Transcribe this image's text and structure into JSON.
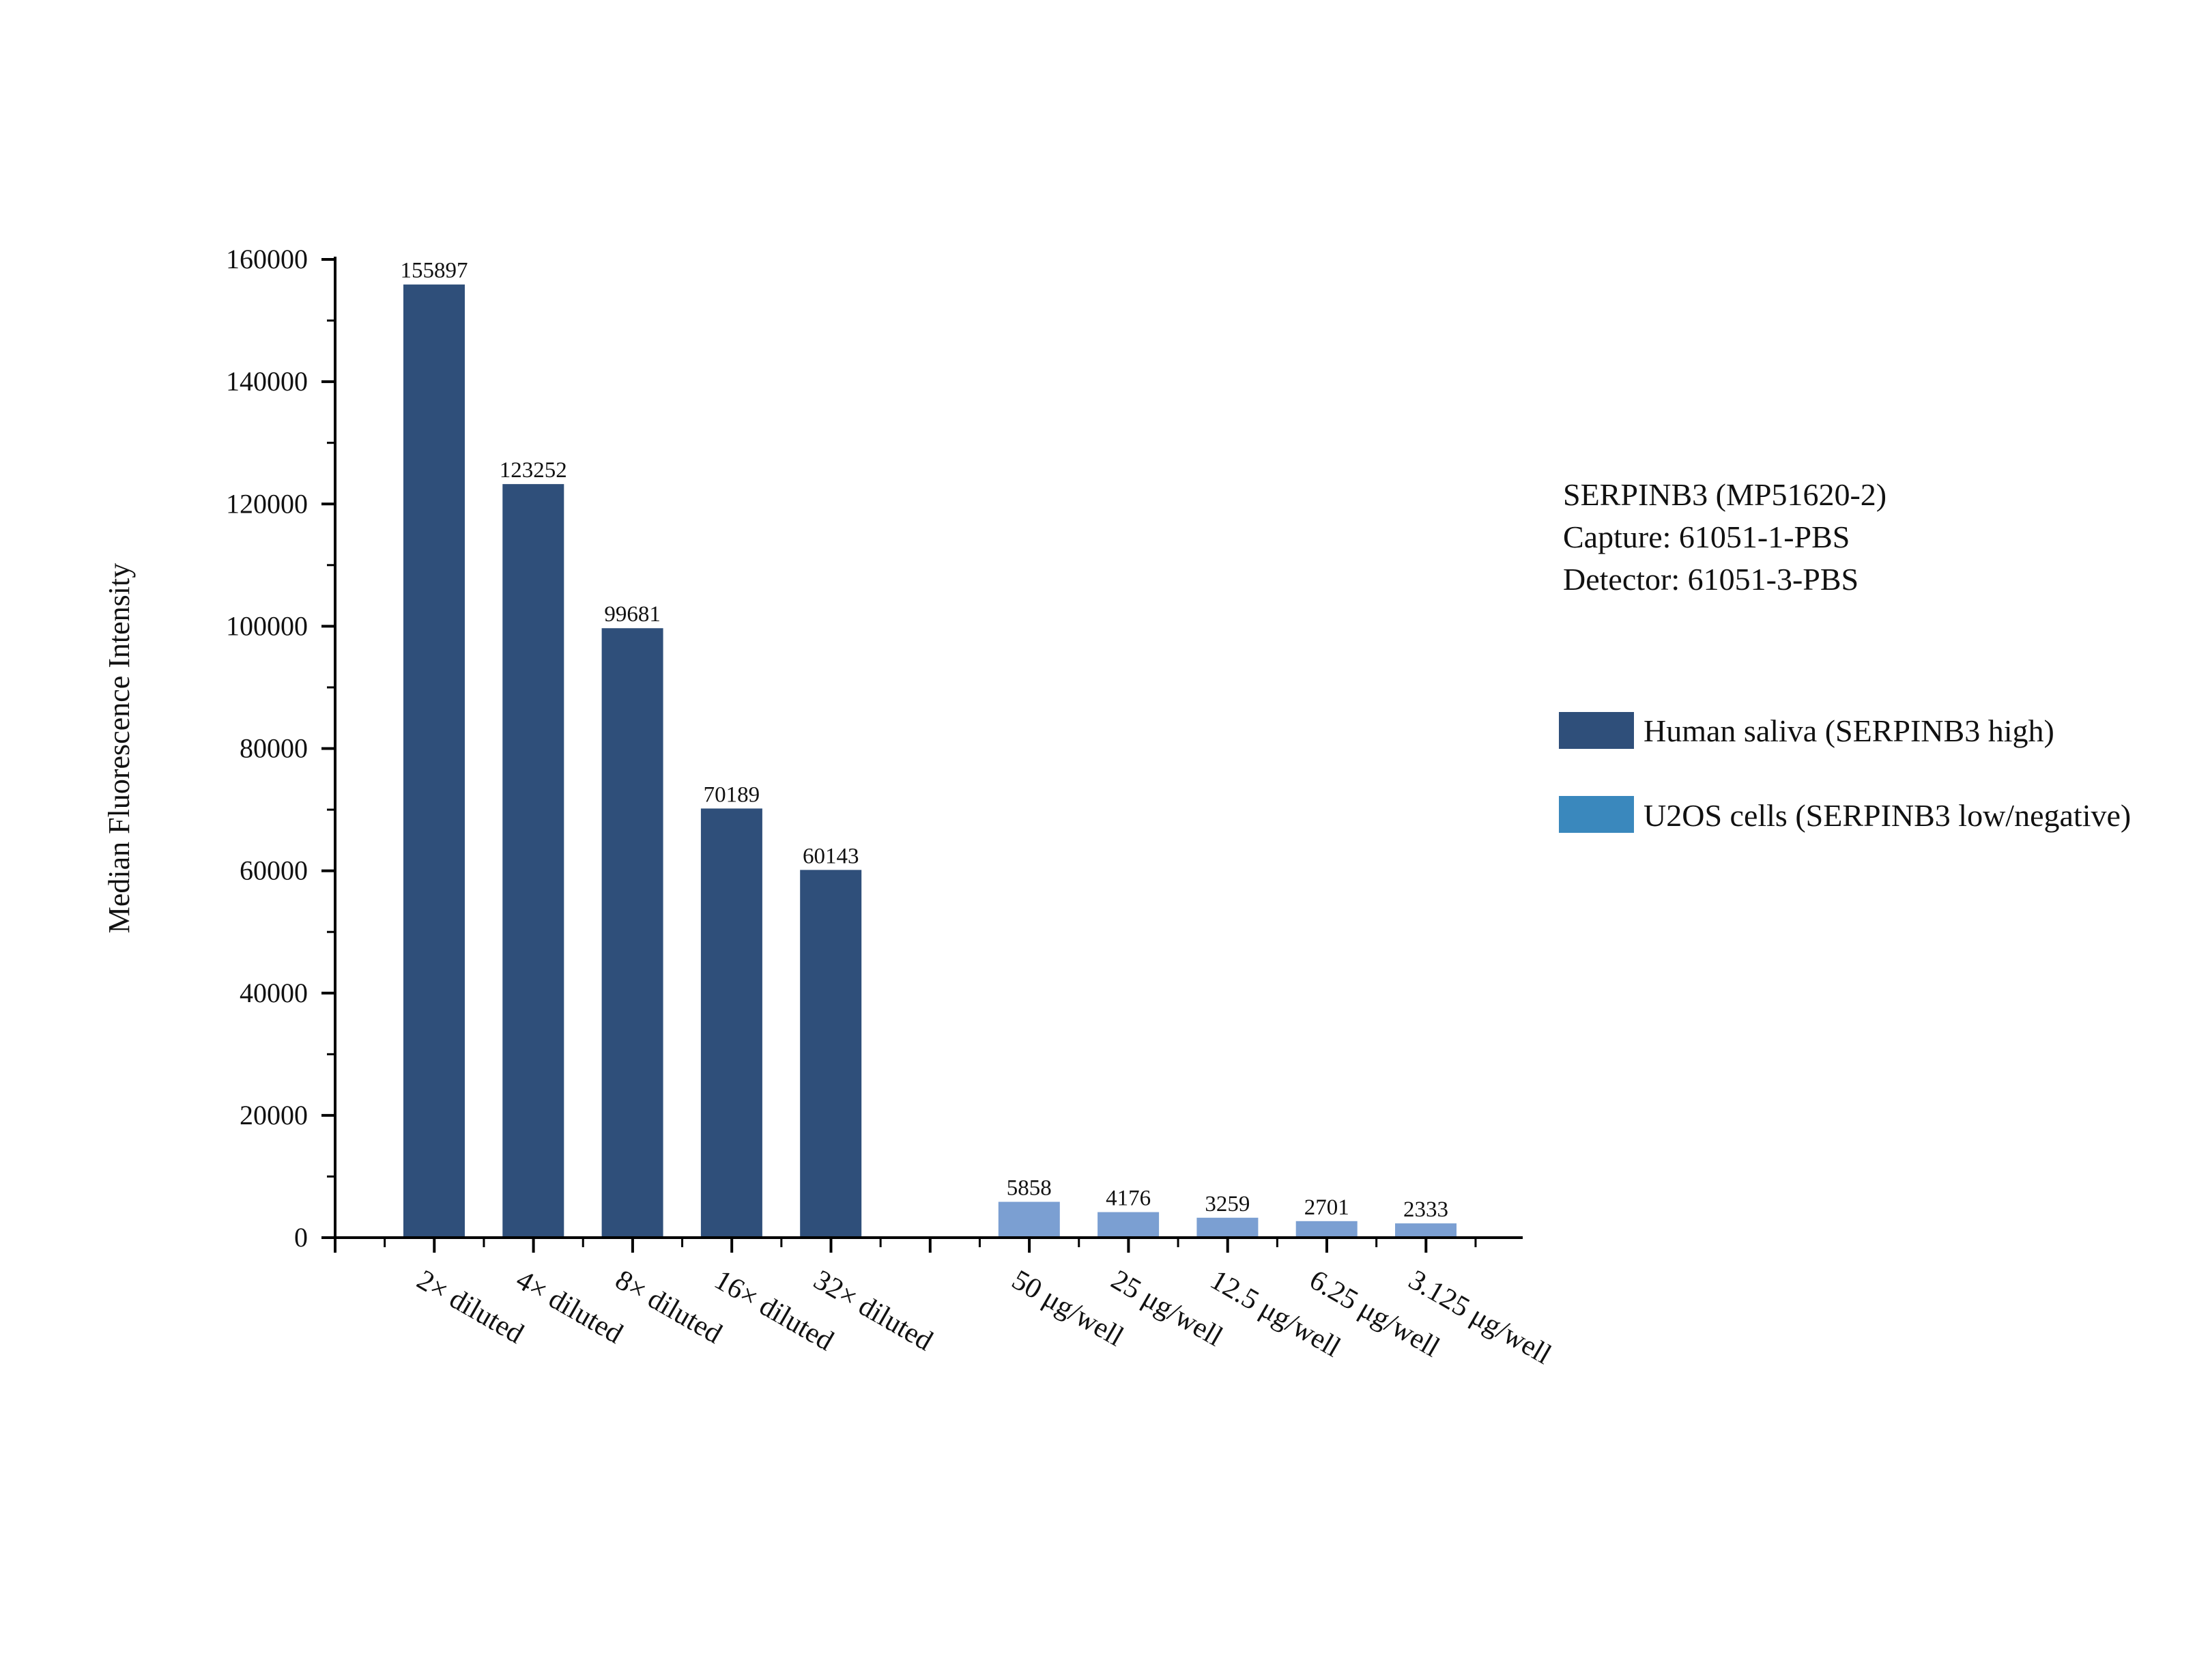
{
  "chart_data": {
    "type": "bar",
    "categories": [
      "2× diluted",
      "4× diluted",
      "8× diluted",
      "16× diluted",
      "32× diluted",
      "",
      "50 μg/well",
      "25 μg/well",
      "12.5 μg/well",
      "6.25 μg/well",
      "3.125 μg/well"
    ],
    "series": [
      {
        "name": "Human saliva (SERPINB3 high)",
        "color": "#2f4f7a",
        "values": [
          155897,
          123252,
          99681,
          70189,
          60143,
          null,
          null,
          null,
          null,
          null,
          null
        ]
      },
      {
        "name": "U2OS cells (SERPINB3 low/negative)",
        "color": "#7b9fd2",
        "legend_color": "#3a88bd",
        "values": [
          null,
          null,
          null,
          null,
          null,
          null,
          5858,
          4176,
          3259,
          2701,
          2333
        ]
      }
    ],
    "ylabel": "Median Fluorescence Intensity",
    "xlabel": "",
    "ylim": [
      0,
      160000
    ],
    "yticks": [
      0,
      20000,
      40000,
      60000,
      80000,
      100000,
      120000,
      140000,
      160000
    ],
    "annotation": [
      "SERPINB3 (MP51620-2)",
      "Capture: 61051-1-PBS",
      "Detector: 61051-3-PBS"
    ],
    "legend_position": "right",
    "grid": false
  }
}
